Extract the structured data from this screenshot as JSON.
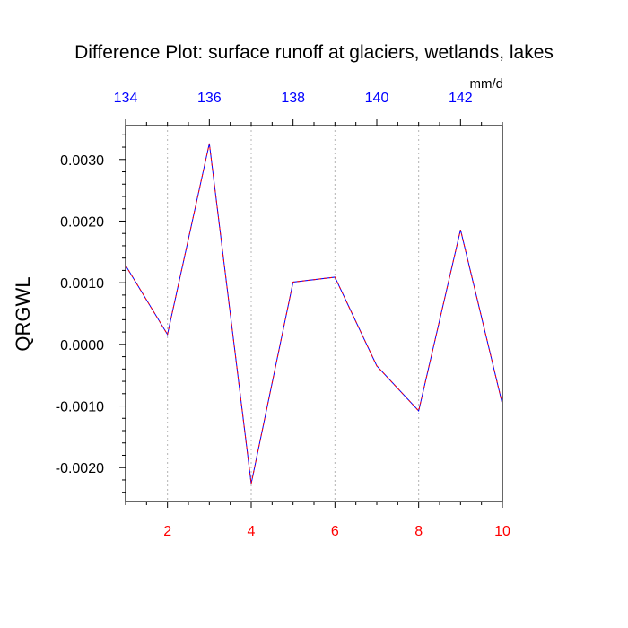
{
  "chart_data": {
    "type": "line",
    "title": "Difference Plot: surface runoff at glaciers, wetlands, lakes",
    "units_label": "mm/d",
    "ylabel": "QRGWL",
    "x": [
      1,
      2,
      3,
      4,
      5,
      6,
      7,
      8,
      9,
      10
    ],
    "xlim": [
      1,
      10
    ],
    "x_ticks": [
      2,
      4,
      6,
      8,
      10
    ],
    "x_tick_labels": [
      "2",
      "4",
      "6",
      "8",
      "10"
    ],
    "x_tick_color": "#ff0000",
    "top_x_ticks": [
      134,
      136,
      138,
      140,
      142
    ],
    "top_x_tick_labels": [
      "134",
      "136",
      "138",
      "140",
      "142"
    ],
    "top_xlim": [
      134,
      143
    ],
    "top_x_tick_color": "#0000ff",
    "ylim": [
      -0.00255,
      0.00355
    ],
    "y_ticks": [
      -0.002,
      -0.001,
      0.0,
      0.001,
      0.002,
      0.003
    ],
    "y_tick_labels": [
      "-0.0020",
      "-0.0010",
      "0.0000",
      "0.0010",
      "0.0020",
      "0.0030"
    ],
    "vertical_grid": "dotted",
    "series": [
      {
        "values": [
          0.00128,
          0.00016,
          0.00326,
          -0.00226,
          0.00101,
          0.00109,
          -0.00035,
          -0.00108,
          0.00186,
          -0.00097
        ],
        "color": "#0000ff",
        "dash_color": "#ff0000"
      }
    ]
  }
}
